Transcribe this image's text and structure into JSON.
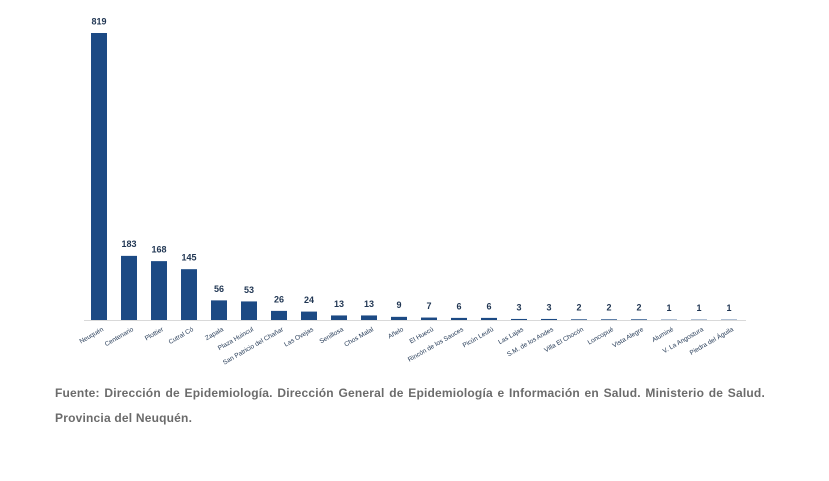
{
  "chart_data": {
    "type": "bar",
    "categories": [
      "Neuquén",
      "Centenario",
      "Plottier",
      "Cutral Có",
      "Zapala",
      "Plaza Huincul",
      "San Patricio del Chañar",
      "Las Ovejas",
      "Senillosa",
      "Chos Malal",
      "Añelo",
      "El Huecú",
      "Rincón de los Sauces",
      "Picún Leufú",
      "Las Lajas",
      "S.M. de los Andes",
      "Villa El Chocón",
      "Loncopué",
      "Vista Alegre",
      "Aluminé",
      "V. La Angostura",
      "Piedra del Águila"
    ],
    "values": [
      819,
      183,
      168,
      145,
      56,
      53,
      26,
      24,
      13,
      13,
      9,
      7,
      6,
      6,
      3,
      3,
      2,
      2,
      2,
      1,
      1,
      1
    ],
    "color": "#1c4a84",
    "source": "Fuente: Dirección de Epidemiología. Dirección General de Epidemiología e Información en Salud. Ministerio de Salud. Provincia del Neuquén."
  }
}
